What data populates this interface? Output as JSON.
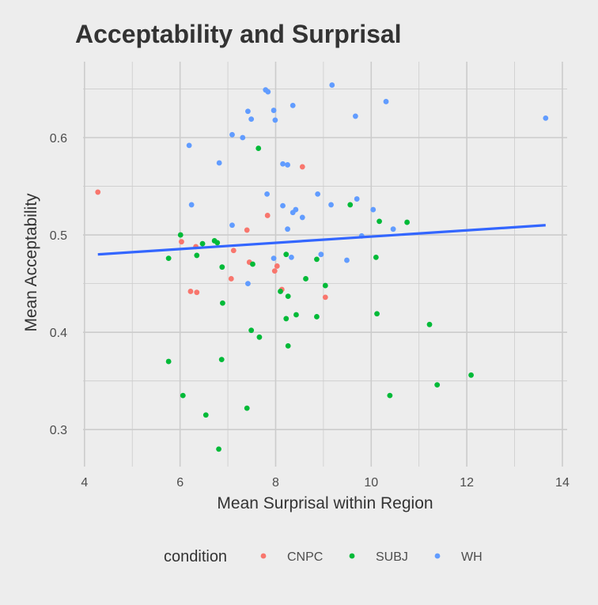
{
  "chart_data": {
    "type": "scatter",
    "title": "Acceptability and Surprisal",
    "xlabel": "Mean Surprisal within Region",
    "ylabel": "Mean Acceptability",
    "xlim": [
      3.97,
      14.1
    ],
    "ylim": [
      0.262,
      0.678
    ],
    "x_ticks": [
      4,
      6,
      8,
      10,
      12,
      14
    ],
    "y_ticks": [
      0.3,
      0.4,
      0.5,
      0.6
    ],
    "x_tick_labels": [
      "4",
      "6",
      "8",
      "10",
      "12",
      "14"
    ],
    "y_tick_labels": [
      "0.3",
      "0.4",
      "0.5",
      "0.6"
    ],
    "grid": true,
    "legend": {
      "title": "condition",
      "position": "bottom",
      "entries": [
        "CNPC",
        "SUBJ",
        "WH"
      ]
    },
    "colors": {
      "CNPC": "#f8766d",
      "SUBJ": "#00ba38",
      "WH": "#619cff",
      "trend": "#3366ff",
      "background": "#ededed",
      "grid": "#cccccc",
      "title": "#333333",
      "text": "#333333"
    },
    "series": [
      {
        "name": "CNPC",
        "points": [
          [
            4.28,
            0.544
          ],
          [
            6.03,
            0.493
          ],
          [
            6.22,
            0.442
          ],
          [
            6.33,
            0.488
          ],
          [
            6.35,
            0.441
          ],
          [
            7.07,
            0.455
          ],
          [
            7.12,
            0.484
          ],
          [
            7.4,
            0.505
          ],
          [
            7.45,
            0.472
          ],
          [
            7.83,
            0.52
          ],
          [
            7.98,
            0.463
          ],
          [
            8.03,
            0.468
          ],
          [
            8.13,
            0.444
          ],
          [
            8.56,
            0.57
          ],
          [
            9.04,
            0.436
          ]
        ]
      },
      {
        "name": "SUBJ",
        "points": [
          [
            5.76,
            0.476
          ],
          [
            5.76,
            0.37
          ],
          [
            6.01,
            0.5
          ],
          [
            6.06,
            0.335
          ],
          [
            6.35,
            0.479
          ],
          [
            6.47,
            0.491
          ],
          [
            6.54,
            0.315
          ],
          [
            6.72,
            0.494
          ],
          [
            6.78,
            0.492
          ],
          [
            6.81,
            0.28
          ],
          [
            6.87,
            0.372
          ],
          [
            6.88,
            0.467
          ],
          [
            6.89,
            0.43
          ],
          [
            7.4,
            0.322
          ],
          [
            7.49,
            0.402
          ],
          [
            7.52,
            0.47
          ],
          [
            7.64,
            0.589
          ],
          [
            7.66,
            0.395
          ],
          [
            8.1,
            0.442
          ],
          [
            8.22,
            0.48
          ],
          [
            8.22,
            0.414
          ],
          [
            8.26,
            0.437
          ],
          [
            8.26,
            0.386
          ],
          [
            8.43,
            0.418
          ],
          [
            8.63,
            0.455
          ],
          [
            8.86,
            0.416
          ],
          [
            8.86,
            0.475
          ],
          [
            9.04,
            0.448
          ],
          [
            9.56,
            0.531
          ],
          [
            10.1,
            0.477
          ],
          [
            10.12,
            0.419
          ],
          [
            10.17,
            0.514
          ],
          [
            10.39,
            0.335
          ],
          [
            10.75,
            0.513
          ],
          [
            11.22,
            0.408
          ],
          [
            11.38,
            0.346
          ],
          [
            12.09,
            0.356
          ]
        ]
      },
      {
        "name": "WH",
        "points": [
          [
            6.19,
            0.592
          ],
          [
            6.24,
            0.531
          ],
          [
            6.82,
            0.574
          ],
          [
            7.09,
            0.603
          ],
          [
            7.09,
            0.51
          ],
          [
            7.31,
            0.6
          ],
          [
            7.42,
            0.627
          ],
          [
            7.42,
            0.45
          ],
          [
            7.49,
            0.619
          ],
          [
            7.79,
            0.649
          ],
          [
            7.82,
            0.542
          ],
          [
            7.84,
            0.647
          ],
          [
            7.96,
            0.628
          ],
          [
            7.96,
            0.476
          ],
          [
            7.99,
            0.618
          ],
          [
            8.15,
            0.573
          ],
          [
            8.15,
            0.53
          ],
          [
            8.25,
            0.572
          ],
          [
            8.25,
            0.506
          ],
          [
            8.33,
            0.477
          ],
          [
            8.36,
            0.633
          ],
          [
            8.36,
            0.523
          ],
          [
            8.42,
            0.526
          ],
          [
            8.56,
            0.518
          ],
          [
            8.88,
            0.542
          ],
          [
            8.95,
            0.48
          ],
          [
            9.16,
            0.531
          ],
          [
            9.18,
            0.654
          ],
          [
            9.49,
            0.474
          ],
          [
            9.67,
            0.622
          ],
          [
            9.7,
            0.537
          ],
          [
            9.8,
            0.499
          ],
          [
            10.04,
            0.526
          ],
          [
            10.31,
            0.637
          ],
          [
            10.46,
            0.506
          ],
          [
            13.65,
            0.62
          ]
        ]
      }
    ],
    "trend_line": {
      "name": "linear fit",
      "x": [
        4.28,
        13.65
      ],
      "y": [
        0.48,
        0.51
      ]
    }
  }
}
